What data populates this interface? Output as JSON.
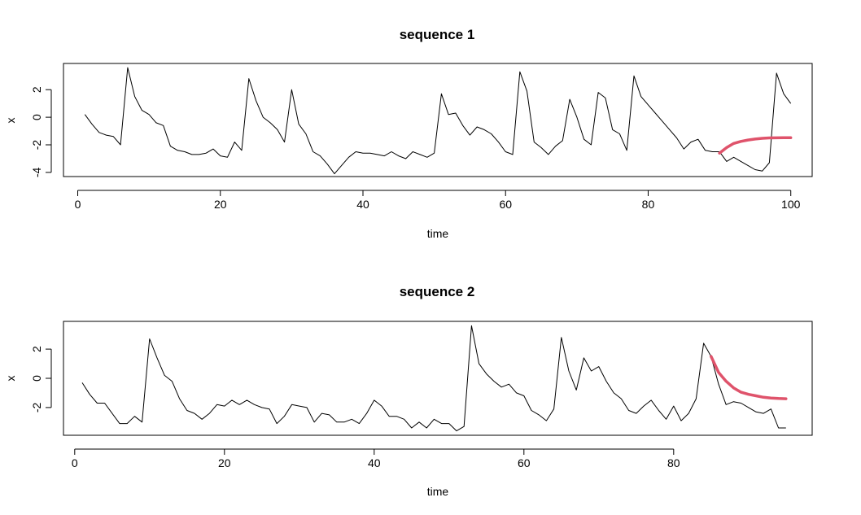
{
  "chart_data": [
    {
      "type": "line",
      "title": "sequence 1",
      "xlabel": "time",
      "ylabel": "x",
      "xlim": [
        -2,
        103
      ],
      "ylim": [
        -4.3,
        3.9
      ],
      "xticks": [
        0,
        20,
        40,
        60,
        80,
        100
      ],
      "yticks": [
        -4,
        -2,
        0,
        2
      ],
      "grid": false,
      "series": [
        {
          "color": "#000000",
          "x": [
            1,
            2,
            3,
            4,
            5,
            6,
            7,
            8,
            9,
            10,
            11,
            12,
            13,
            14,
            15,
            16,
            17,
            18,
            19,
            20,
            21,
            22,
            23,
            24,
            25,
            26,
            27,
            28,
            29,
            30,
            31,
            32,
            33,
            34,
            35,
            36,
            37,
            38,
            39,
            40,
            41,
            42,
            43,
            44,
            45,
            46,
            47,
            48,
            49,
            50,
            51,
            52,
            53,
            54,
            55,
            56,
            57,
            58,
            59,
            60,
            61,
            62,
            63,
            64,
            65,
            66,
            67,
            68,
            69,
            70,
            71,
            72,
            73,
            74,
            75,
            76,
            77,
            78,
            79,
            80,
            81,
            82,
            83,
            84,
            85,
            86,
            87,
            88,
            89,
            90,
            91,
            92,
            93,
            94,
            95,
            96,
            97,
            98,
            99,
            100
          ],
          "y": [
            0.2,
            -0.5,
            -1.1,
            -1.3,
            -1.4,
            -2.0,
            3.6,
            1.5,
            0.5,
            0.2,
            -0.4,
            -0.6,
            -2.1,
            -2.4,
            -2.5,
            -2.7,
            -2.7,
            -2.6,
            -2.3,
            -2.8,
            -2.9,
            -1.8,
            -2.4,
            2.8,
            1.2,
            0.0,
            -0.4,
            -0.9,
            -1.8,
            2.0,
            -0.5,
            -1.2,
            -2.5,
            -2.8,
            -3.4,
            -4.1,
            -3.5,
            -2.9,
            -2.5,
            -2.6,
            -2.6,
            -2.7,
            -2.8,
            -2.5,
            -2.8,
            -3.0,
            -2.5,
            -2.7,
            -2.9,
            -2.6,
            1.7,
            0.2,
            0.3,
            -0.6,
            -1.3,
            -0.7,
            -0.9,
            -1.2,
            -1.8,
            -2.5,
            -2.7,
            3.3,
            1.9,
            -1.8,
            -2.2,
            -2.7,
            -2.1,
            -1.7,
            1.3,
            0.0,
            -1.6,
            -2.0,
            1.8,
            1.4,
            -0.9,
            -1.2,
            -2.4,
            3.0,
            1.5,
            0.9,
            0.3,
            -0.3,
            -0.9,
            -1.5,
            -2.3,
            -1.8,
            -1.6,
            -2.4,
            -2.5,
            -2.5,
            -3.2,
            -2.9,
            -3.2,
            -3.5,
            -3.8,
            -3.9,
            -3.3,
            3.2,
            1.7,
            1.0
          ]
        },
        {
          "color": "#DF536B",
          "x": [
            90,
            91,
            92,
            93,
            94,
            95,
            96,
            97,
            98,
            99,
            100
          ],
          "y": [
            -2.6,
            -2.2,
            -1.9,
            -1.75,
            -1.65,
            -1.58,
            -1.53,
            -1.5,
            -1.49,
            -1.48,
            -1.48
          ]
        }
      ]
    },
    {
      "type": "line",
      "title": "sequence 2",
      "xlabel": "time",
      "ylabel": "x",
      "xlim": [
        -1.5,
        98.5
      ],
      "ylim": [
        -3.9,
        3.9
      ],
      "xticks": [
        0,
        20,
        40,
        60,
        80
      ],
      "yticks": [
        -2,
        0,
        2
      ],
      "grid": false,
      "series": [
        {
          "color": "#000000",
          "x": [
            1,
            2,
            3,
            4,
            5,
            6,
            7,
            8,
            9,
            10,
            11,
            12,
            13,
            14,
            15,
            16,
            17,
            18,
            19,
            20,
            21,
            22,
            23,
            24,
            25,
            26,
            27,
            28,
            29,
            30,
            31,
            32,
            33,
            34,
            35,
            36,
            37,
            38,
            39,
            40,
            41,
            42,
            43,
            44,
            45,
            46,
            47,
            48,
            49,
            50,
            51,
            52,
            53,
            54,
            55,
            56,
            57,
            58,
            59,
            60,
            61,
            62,
            63,
            64,
            65,
            66,
            67,
            68,
            69,
            70,
            71,
            72,
            73,
            74,
            75,
            76,
            77,
            78,
            79,
            80,
            81,
            82,
            83,
            84,
            85,
            86,
            87,
            88,
            89,
            90,
            91,
            92,
            93,
            94,
            95
          ],
          "y": [
            -0.3,
            -1.1,
            -1.7,
            -1.7,
            -2.4,
            -3.1,
            -3.1,
            -2.6,
            -3.0,
            2.7,
            1.4,
            0.2,
            -0.2,
            -1.4,
            -2.2,
            -2.4,
            -2.8,
            -2.4,
            -1.8,
            -1.9,
            -1.5,
            -1.8,
            -1.5,
            -1.8,
            -2.0,
            -2.1,
            -3.1,
            -2.6,
            -1.8,
            -1.9,
            -2.0,
            -3.0,
            -2.4,
            -2.5,
            -3.0,
            -3.0,
            -2.8,
            -3.1,
            -2.4,
            -1.5,
            -1.9,
            -2.6,
            -2.6,
            -2.8,
            -3.4,
            -3.0,
            -3.4,
            -2.8,
            -3.1,
            -3.1,
            -3.6,
            -3.3,
            3.6,
            1.0,
            0.3,
            -0.2,
            -0.6,
            -0.4,
            -1.0,
            -1.2,
            -2.2,
            -2.5,
            -2.9,
            -2.1,
            2.8,
            0.5,
            -0.8,
            1.4,
            0.5,
            0.8,
            -0.2,
            -1.0,
            -1.4,
            -2.2,
            -2.4,
            -1.9,
            -1.5,
            -2.2,
            -2.8,
            -1.9,
            -2.9,
            -2.4,
            -1.4,
            2.4,
            1.5,
            -0.4,
            -1.8,
            -1.6,
            -1.7,
            -2.0,
            -2.3,
            -2.4,
            -2.1,
            -3.4,
            -3.4
          ]
        },
        {
          "color": "#DF536B",
          "x": [
            85,
            86,
            87,
            88,
            89,
            90,
            91,
            92,
            93,
            94,
            95
          ],
          "y": [
            1.5,
            0.4,
            -0.2,
            -0.65,
            -0.95,
            -1.1,
            -1.2,
            -1.3,
            -1.35,
            -1.38,
            -1.4
          ]
        }
      ]
    }
  ]
}
